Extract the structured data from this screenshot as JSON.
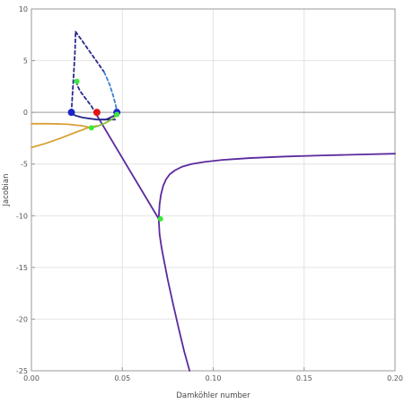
{
  "chart_data": {
    "type": "line",
    "xlabel": "Damköhler number",
    "ylabel": "Jacobian",
    "xlim": [
      0,
      0.2
    ],
    "ylim": [
      -25,
      10
    ],
    "x_ticks": [
      0,
      0.05,
      0.1,
      0.15,
      0.2
    ],
    "x_tick_labels": [
      "0.00",
      "0.05",
      "0.10",
      "0.15",
      "0.20"
    ],
    "y_ticks": [
      -25,
      -20,
      -15,
      -10,
      -5,
      0,
      5,
      10
    ],
    "y_tick_labels": [
      "-25",
      "-20",
      "-15",
      "-10",
      "-5",
      "0",
      "5",
      "10"
    ],
    "grid": true,
    "colors": {
      "purple": "#5b2a9e",
      "navy": "#2a2a8c",
      "blue": "#3a7fd0",
      "orange": "#d9a035",
      "green": "#86c13e",
      "gridline": "#e4e4e4",
      "zero_line": "#9a9a9a",
      "point_blue": "#1a24c8",
      "point_red": "#e41414",
      "point_green": "#3de83d"
    },
    "series": [
      {
        "key": "purple_upper",
        "color": "purple",
        "style": "solid",
        "x": [
          0.07,
          0.0705,
          0.0712,
          0.0725,
          0.074,
          0.076,
          0.079,
          0.083,
          0.088,
          0.095,
          0.105,
          0.12,
          0.14,
          0.16,
          0.18,
          0.2
        ],
        "y": [
          -10.3,
          -8.9,
          -8.0,
          -7.1,
          -6.5,
          -6.0,
          -5.6,
          -5.25,
          -5.0,
          -4.8,
          -4.6,
          -4.42,
          -4.27,
          -4.17,
          -4.08,
          -4.0
        ]
      },
      {
        "key": "purple_lower",
        "color": "purple",
        "style": "solid",
        "x": [
          0.07,
          0.0705,
          0.0715,
          0.073,
          0.075,
          0.078,
          0.081,
          0.084,
          0.087
        ],
        "y": [
          -10.3,
          -11.8,
          -13.0,
          -14.4,
          -16.2,
          -18.6,
          -20.9,
          -23.1,
          -25
        ]
      },
      {
        "key": "purple_diagonal",
        "color": "purple",
        "style": "solid",
        "x": [
          0.035,
          0.07
        ],
        "y": [
          0,
          -10.3
        ]
      },
      {
        "key": "navy_short",
        "color": "navy",
        "style": "solid",
        "x": [
          0.038,
          0.046
        ],
        "y": [
          -0.7,
          -0.7
        ]
      },
      {
        "key": "navy_curve",
        "color": "navy",
        "style": "solid",
        "x": [
          0.022,
          0.024,
          0.028,
          0.032,
          0.036,
          0.041,
          0.047
        ],
        "y": [
          0,
          -0.3,
          -0.5,
          -0.6,
          -0.7,
          -0.7,
          -0.2
        ]
      },
      {
        "key": "navy_dashed_left",
        "color": "navy",
        "style": "dashed",
        "x": [
          0.022,
          0.0225,
          0.0232,
          0.024,
          0.0243
        ],
        "y": [
          0,
          1.5,
          3.5,
          6.0,
          7.8
        ]
      },
      {
        "key": "navy_dashed_top",
        "color": "navy",
        "style": "dashed",
        "x": [
          0.0243,
          0.028,
          0.032,
          0.036,
          0.04
        ],
        "y": [
          7.8,
          6.9,
          5.9,
          4.9,
          3.9
        ]
      },
      {
        "key": "blue_dashed",
        "color": "blue",
        "style": "dashed",
        "x": [
          0.04,
          0.043,
          0.045,
          0.0465,
          0.047
        ],
        "y": [
          3.9,
          2.7,
          1.6,
          0.6,
          0
        ]
      },
      {
        "key": "navy_dashed_inner",
        "color": "navy",
        "style": "dashed",
        "x": [
          0.025,
          0.0252,
          0.027,
          0.03,
          0.033,
          0.035
        ],
        "y": [
          3.0,
          2.6,
          2.0,
          1.3,
          0.6,
          0
        ]
      },
      {
        "key": "orange_lower",
        "color": "orange",
        "style": "solid",
        "x": [
          0.0,
          0.008,
          0.016,
          0.024,
          0.031,
          0.036
        ],
        "y": [
          -3.4,
          -3.0,
          -2.5,
          -1.95,
          -1.5,
          -1.3
        ]
      },
      {
        "key": "orange_upper",
        "color": "orange",
        "style": "solid",
        "x": [
          0.0,
          0.01,
          0.02,
          0.028,
          0.033
        ],
        "y": [
          -1.1,
          -1.1,
          -1.15,
          -1.3,
          -1.5
        ]
      },
      {
        "key": "green_curve",
        "color": "green",
        "style": "solid",
        "x": [
          0.033,
          0.037,
          0.041,
          0.045,
          0.047
        ],
        "y": [
          -1.5,
          -1.3,
          -1.0,
          -0.6,
          -0.2
        ]
      }
    ],
    "points": [
      {
        "x": 0.022,
        "y": 0,
        "color": "point_blue",
        "r": 4
      },
      {
        "x": 0.047,
        "y": 0,
        "color": "point_blue",
        "r": 4
      },
      {
        "x": 0.036,
        "y": 0,
        "color": "point_red",
        "r": 4
      },
      {
        "x": 0.025,
        "y": 3.0,
        "color": "point_green",
        "r": 3
      },
      {
        "x": 0.033,
        "y": -1.5,
        "color": "point_green",
        "r": 3
      },
      {
        "x": 0.047,
        "y": -0.2,
        "color": "point_green",
        "r": 3
      },
      {
        "x": 0.071,
        "y": -10.3,
        "color": "point_green",
        "r": 3
      }
    ]
  }
}
